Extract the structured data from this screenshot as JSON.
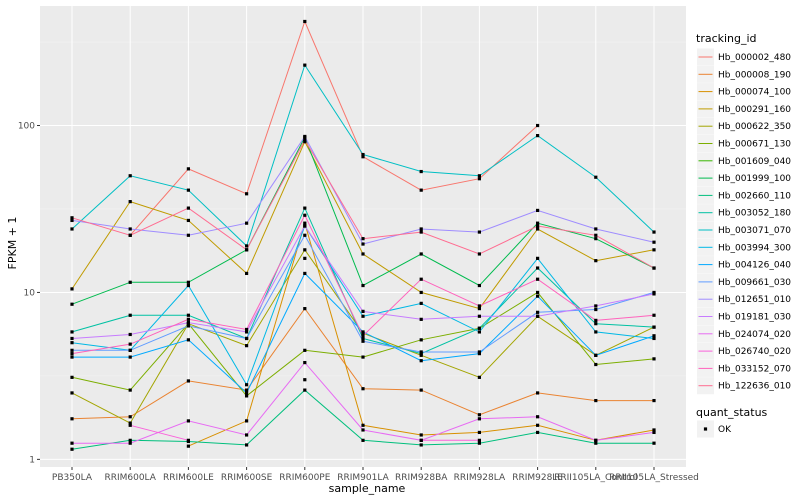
{
  "chart_data": {
    "type": "line",
    "y_scale": "log10",
    "xlabel": "sample_name",
    "ylabel": "FPKM + 1",
    "ylim": [
      0.9,
      520
    ],
    "y_ticks": [
      1,
      10,
      100
    ],
    "y_tick_labels": [
      "1",
      "10",
      "100"
    ],
    "grid": true,
    "legend_placement": "right",
    "categories": [
      "PB350LA",
      "RRIM600LA",
      "RRIM600LE",
      "RRIM600SE",
      "RRIM600PE",
      "RRIM901LA",
      "RRIM928BA",
      "RRIM928LA",
      "RRIM928LE",
      "RRII105LA_Control",
      "RRII105LA_Stressed"
    ],
    "legend_title": "tracking_id",
    "series": [
      {
        "name": "Hb_000002_480",
        "color": "#F8766D",
        "values": [
          null,
          22,
          55,
          39,
          420,
          65,
          41,
          48,
          100,
          null,
          null
        ]
      },
      {
        "name": "Hb_000008_190",
        "color": "#EA8331",
        "values": [
          1.75,
          1.8,
          2.95,
          2.6,
          8,
          2.65,
          2.6,
          1.85,
          2.5,
          2.25,
          2.25
        ]
      },
      {
        "name": "Hb_000074_100",
        "color": "#D89000",
        "values": [
          null,
          null,
          1.2,
          1.7,
          26,
          1.6,
          1.4,
          1.45,
          1.6,
          1.3,
          1.5
        ]
      },
      {
        "name": "Hb_000291_160",
        "color": "#C09B00",
        "values": [
          10.5,
          35,
          27,
          13,
          80,
          17,
          10,
          8,
          24,
          15.5,
          18
        ]
      },
      {
        "name": "Hb_000622_350",
        "color": "#A3A500",
        "values": [
          2.5,
          1.65,
          6.5,
          4.8,
          18,
          5.7,
          4.2,
          3.1,
          7.2,
          4.2,
          6.2
        ]
      },
      {
        "name": "Hb_000671_130",
        "color": "#7CAE00",
        "values": [
          3.1,
          2.6,
          6.5,
          2.4,
          4.5,
          4.1,
          5.2,
          6.1,
          10,
          3.7,
          4
        ]
      },
      {
        "name": "Hb_001609_040",
        "color": "#39B600",
        "values": [
          null,
          null,
          null,
          null,
          16,
          null,
          null,
          null,
          null,
          null,
          null
        ]
      },
      {
        "name": "Hb_001999_100",
        "color": "#00BB4E",
        "values": [
          8.5,
          11.5,
          11.5,
          18,
          85,
          11,
          17,
          11,
          26,
          21,
          14
        ]
      },
      {
        "name": "Hb_002660_110",
        "color": "#00BF7D",
        "values": [
          1.15,
          1.3,
          1.28,
          1.22,
          2.6,
          1.3,
          1.22,
          1.25,
          1.45,
          1.25,
          1.25
        ]
      },
      {
        "name": "Hb_003052_180",
        "color": "#00C1A3",
        "values": [
          5.8,
          7.3,
          7.3,
          5.3,
          32,
          5.3,
          4.3,
          6.1,
          14,
          6.5,
          6.2
        ]
      },
      {
        "name": "Hb_003071_070",
        "color": "#00BFC4",
        "values": [
          24,
          50,
          41,
          19,
          230,
          67,
          53,
          50,
          87,
          49,
          23
        ]
      },
      {
        "name": "Hb_003994_300",
        "color": "#00B8E5",
        "values": [
          5,
          4.5,
          11,
          2.8,
          25,
          7.2,
          8.6,
          5.8,
          16,
          5.8,
          5.3
        ]
      },
      {
        "name": "Hb_004126_040",
        "color": "#00A9FF",
        "values": [
          4.1,
          4.1,
          5.2,
          2.5,
          13,
          5.8,
          3.9,
          4.3,
          9.5,
          4.2,
          5.5
        ]
      },
      {
        "name": "Hb_009661_030",
        "color": "#619CFF",
        "values": [
          4.5,
          4.5,
          6.3,
          5.3,
          22,
          5.1,
          4.4,
          4.4,
          7.6,
          7.9,
          10
        ]
      },
      {
        "name": "Hb_012651_010",
        "color": "#9F8CFF",
        "values": [
          27,
          24,
          22,
          26,
          86,
          19.5,
          24,
          23,
          31,
          24,
          20
        ]
      },
      {
        "name": "Hb_019181_030",
        "color": "#C77CFF",
        "values": [
          5.3,
          5.6,
          6.6,
          5.8,
          25,
          7.7,
          6.9,
          7.2,
          7.2,
          8.3,
          9.8
        ]
      },
      {
        "name": "Hb_024074_020",
        "color": "#E76BF3",
        "values": [
          1.25,
          1.25,
          1.7,
          1.4,
          3.8,
          1.5,
          1.3,
          1.75,
          1.8,
          1.3,
          1.45
        ]
      },
      {
        "name": "Hb_026740_020",
        "color": "#FA62DB",
        "values": [
          null,
          1.6,
          1.3,
          null,
          3,
          null,
          1.3,
          1.3,
          null,
          null,
          null
        ]
      },
      {
        "name": "Hb_033152_070",
        "color": "#FF62BC",
        "values": [
          4.3,
          4.9,
          6.9,
          6,
          29,
          5.5,
          12,
          8.3,
          12,
          6.8,
          7.3
        ]
      },
      {
        "name": "Hb_122636_010",
        "color": "#FF6C91",
        "values": [
          28,
          22,
          32,
          18,
          82,
          21,
          23,
          17,
          25,
          22,
          14
        ]
      }
    ],
    "quant_status_legend": {
      "title": "quant_status",
      "entries": [
        "OK"
      ]
    }
  }
}
